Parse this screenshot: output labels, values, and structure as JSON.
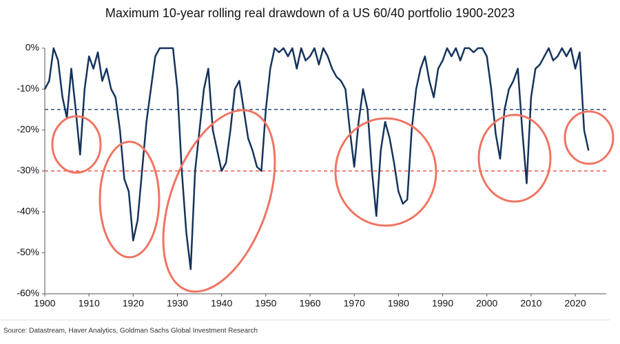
{
  "chart_data": {
    "type": "line",
    "title": "Maximum 10-year rolling real drawdown of a US 60/40 portfolio 1900-2023",
    "source": "Source: Datastream, Haver Analytics, Goldman Sachs Global Investment Research",
    "x": [
      1900,
      1901,
      1902,
      1903,
      1904,
      1905,
      1906,
      1907,
      1908,
      1909,
      1910,
      1911,
      1912,
      1913,
      1914,
      1915,
      1916,
      1917,
      1918,
      1919,
      1920,
      1921,
      1922,
      1923,
      1924,
      1925,
      1926,
      1927,
      1928,
      1929,
      1930,
      1931,
      1932,
      1933,
      1934,
      1935,
      1936,
      1937,
      1938,
      1939,
      1940,
      1941,
      1942,
      1943,
      1944,
      1945,
      1946,
      1947,
      1948,
      1949,
      1950,
      1951,
      1952,
      1953,
      1954,
      1955,
      1956,
      1957,
      1958,
      1959,
      1960,
      1961,
      1962,
      1963,
      1964,
      1965,
      1966,
      1967,
      1968,
      1969,
      1970,
      1971,
      1972,
      1973,
      1974,
      1975,
      1976,
      1977,
      1978,
      1979,
      1980,
      1981,
      1982,
      1983,
      1984,
      1985,
      1986,
      1987,
      1988,
      1989,
      1990,
      1991,
      1992,
      1993,
      1994,
      1995,
      1996,
      1997,
      1998,
      1999,
      2000,
      2001,
      2002,
      2003,
      2004,
      2005,
      2006,
      2007,
      2008,
      2009,
      2010,
      2011,
      2012,
      2013,
      2014,
      2015,
      2016,
      2017,
      2018,
      2019,
      2020,
      2021,
      2022,
      2023
    ],
    "series": [
      {
        "name": "Drawdown",
        "color": "#14335c",
        "values": [
          -10,
          -8,
          0,
          -3,
          -12,
          -17,
          -5,
          -15,
          -26,
          -10,
          -2,
          -5,
          -1,
          -8,
          -5,
          -10,
          -12,
          -20,
          -32,
          -35,
          -47,
          -42,
          -30,
          -18,
          -10,
          -2,
          0,
          0,
          0,
          0,
          -10,
          -30,
          -45,
          -54,
          -30,
          -20,
          -10,
          -5,
          -20,
          -25,
          -30,
          -28,
          -20,
          -10,
          -8,
          -15,
          -22,
          -25,
          -29,
          -30,
          -15,
          -5,
          0,
          -1,
          0,
          -2,
          0,
          -5,
          0,
          -3,
          -2,
          0,
          -4,
          0,
          -2,
          -5,
          -7,
          -8,
          -10,
          -20,
          -29,
          -18,
          -10,
          -15,
          -30,
          -41,
          -25,
          -18,
          -22,
          -28,
          -35,
          -38,
          -37,
          -20,
          -10,
          -5,
          -2,
          -8,
          -12,
          -5,
          -3,
          0,
          -2,
          0,
          -3,
          0,
          0,
          -1,
          0,
          0,
          -2,
          -10,
          -21,
          -27,
          -15,
          -10,
          -8,
          -5,
          -20,
          -33,
          -12,
          -5,
          -4,
          -2,
          0,
          -3,
          -2,
          0,
          -2,
          0,
          -5,
          -1,
          -20,
          -25
        ]
      }
    ],
    "reference_lines": [
      {
        "value": -15,
        "color": "#2e4f7a"
      },
      {
        "value": -30,
        "color": "#e8564a"
      }
    ],
    "xlim": [
      1900,
      2027
    ],
    "ylim": [
      -60,
      0
    ],
    "xticks": [
      1900,
      1910,
      1920,
      1930,
      1940,
      1950,
      1960,
      1970,
      1980,
      1990,
      2000,
      2010,
      2020
    ],
    "yticks": [
      {
        "value": 0,
        "label": "0%"
      },
      {
        "value": -10,
        "label": "-10%"
      },
      {
        "value": -20,
        "label": "-20%"
      },
      {
        "value": -30,
        "label": "-30%"
      },
      {
        "value": -40,
        "label": "-40%"
      },
      {
        "value": -50,
        "label": "-50%"
      },
      {
        "value": -60,
        "label": "-60%"
      }
    ]
  }
}
